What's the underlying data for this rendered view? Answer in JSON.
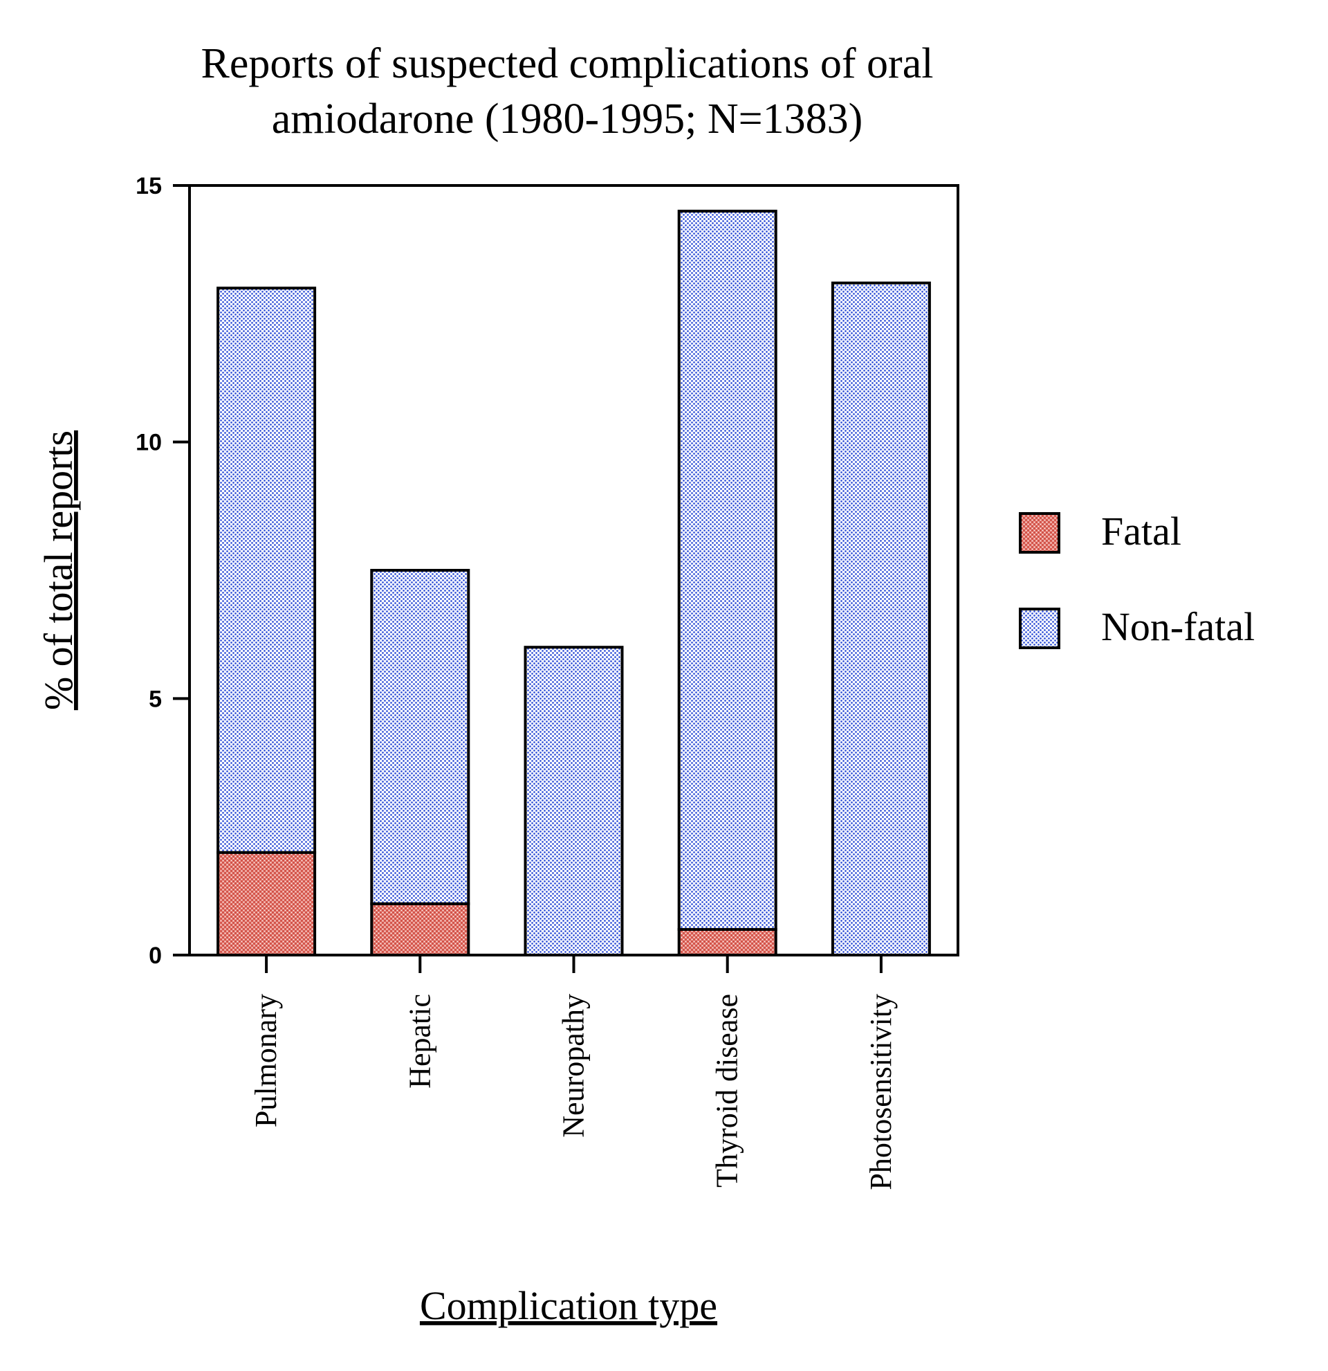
{
  "chart_data": {
    "type": "bar",
    "stacked": true,
    "title_lines": [
      "Reports of suspected complications of oral",
      "amiodarone (1980-1995; N=1383)"
    ],
    "xlabel": "Complication type",
    "ylabel": "% of total reports",
    "ylim": [
      0,
      15
    ],
    "yticks": [
      0,
      5,
      10,
      15
    ],
    "ytick_labels": [
      "0",
      "5",
      "10",
      "15"
    ],
    "categories": [
      "Pulmonary",
      "Hepatic",
      "Neuropathy",
      "Thyroid disease",
      "Photosensitivity"
    ],
    "series": [
      {
        "name": "Fatal",
        "key": "fatal",
        "color": "#e8776f",
        "values": [
          2.0,
          1.0,
          0.0,
          0.5,
          0.0
        ]
      },
      {
        "name": "Non-fatal",
        "key": "nonfatal",
        "color": "#3b5be0",
        "values": [
          11.0,
          6.5,
          6.0,
          14.0,
          13.1
        ]
      }
    ],
    "legend_position": "right"
  }
}
